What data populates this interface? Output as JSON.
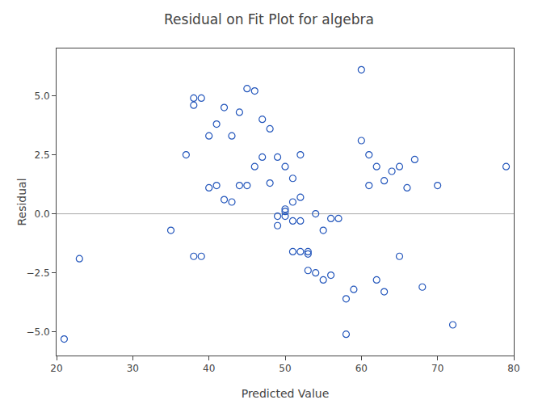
{
  "chart_data": {
    "type": "scatter",
    "title": "Residual on Fit Plot for algebra",
    "xlabel": "Predicted Value",
    "ylabel": "Residual",
    "xlim": [
      20,
      80
    ],
    "ylim": [
      -6,
      7
    ],
    "xticks": [
      20,
      30,
      40,
      50,
      60,
      70,
      80
    ],
    "yticks": [
      {
        "value": -5,
        "label": "−5.0"
      },
      {
        "value": -2.5,
        "label": "−2.5"
      },
      {
        "value": 0,
        "label": "0.0"
      },
      2.5,
      {
        "value": 5,
        "label": "5.0"
      }
    ],
    "hline": 0,
    "grid": false,
    "color": "#2255bb",
    "marker": "open circle",
    "x": [
      21,
      23,
      35,
      37,
      38,
      38,
      38,
      39,
      39,
      40,
      40,
      41,
      41,
      42,
      42,
      43,
      43,
      44,
      44,
      45,
      45,
      46,
      46,
      47,
      47,
      48,
      48,
      49,
      49,
      49,
      50,
      50,
      50,
      50,
      51,
      51,
      51,
      51,
      52,
      52,
      52,
      52,
      53,
      53,
      53,
      54,
      54,
      55,
      55,
      56,
      56,
      57,
      58,
      58,
      59,
      60,
      60,
      61,
      61,
      62,
      62,
      63,
      63,
      64,
      65,
      65,
      66,
      67,
      68,
      70,
      72,
      79
    ],
    "values": [
      -5.3,
      -1.9,
      -0.7,
      2.5,
      4.9,
      4.6,
      -1.8,
      -1.8,
      4.9,
      3.3,
      1.1,
      3.8,
      1.2,
      4.5,
      0.6,
      3.3,
      0.5,
      4.3,
      1.2,
      5.3,
      1.2,
      5.2,
      2.0,
      4.0,
      2.4,
      3.6,
      1.3,
      2.4,
      -0.1,
      -0.5,
      2.0,
      0.2,
      0.1,
      -0.1,
      1.5,
      0.5,
      -0.3,
      -1.6,
      2.5,
      0.7,
      -0.3,
      -1.6,
      -1.6,
      -1.7,
      -2.4,
      0.0,
      -2.5,
      -2.8,
      -0.7,
      -2.6,
      -0.2,
      -0.2,
      -5.1,
      -3.6,
      -3.2,
      6.1,
      3.1,
      2.5,
      1.2,
      2.0,
      -2.8,
      1.4,
      -3.3,
      1.8,
      2.0,
      -1.8,
      1.1,
      2.3,
      -3.1,
      1.2,
      -4.7,
      2.0
    ]
  }
}
